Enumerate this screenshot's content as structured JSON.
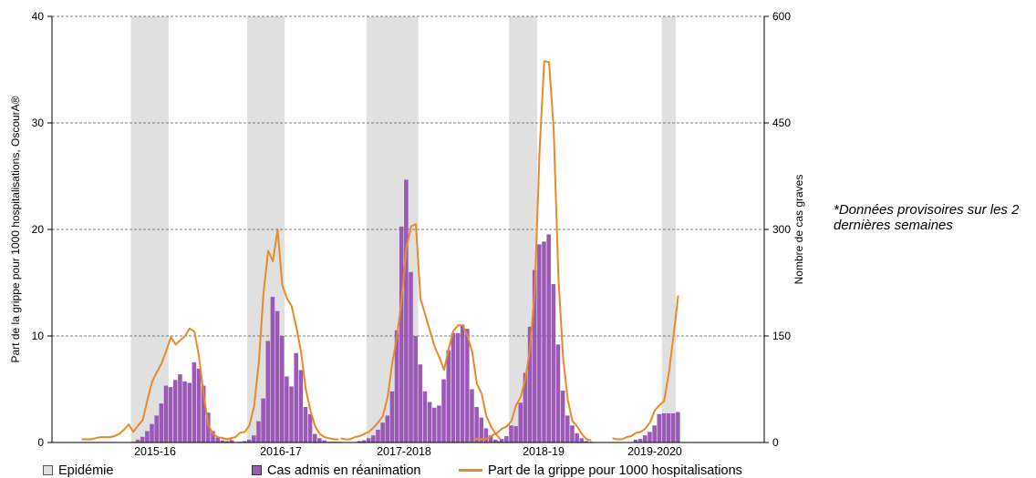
{
  "chart_data": {
    "type": "bar",
    "title": "",
    "ylabel_left": "Part de la grippe pour 1000 hospitalisations, OscourA®",
    "ylabel_right": "Nombre de cas graves",
    "ylim_left": [
      0,
      40
    ],
    "ylim_right": [
      0,
      600
    ],
    "yticks_left": [
      "0",
      "10",
      "20",
      "30",
      "40"
    ],
    "yticks_right": [
      "0",
      "150",
      "300",
      "450",
      "600"
    ],
    "grid": "horizontal dashed",
    "legend_position": "bottom",
    "note": "*Données provisoires sur les 2 dernières semaines",
    "colors": {
      "epidemic": "#e0e0e0",
      "bars": "#9b59b6",
      "line": "#e8892a"
    },
    "seasons": [
      {
        "label": "2015-16",
        "epidemic_weeks": [
          11,
          18
        ],
        "bars": [
          0,
          0,
          0,
          0,
          0,
          0,
          0,
          0,
          0,
          0,
          0,
          1,
          4,
          8,
          16,
          26,
          38,
          55,
          80,
          78,
          88,
          96,
          86,
          84,
          113,
          104,
          80,
          42,
          16,
          7,
          3,
          2,
          3
        ],
        "line": [
          0.3,
          0.3,
          0.3,
          0.4,
          0.5,
          0.5,
          0.5,
          0.6,
          0.8,
          1.2,
          1.7,
          1.0,
          1.6,
          2.1,
          4.0,
          5.7,
          6.6,
          7.4,
          8.6,
          9.9,
          9.2,
          9.6,
          10.0,
          10.7,
          10.4,
          8.0,
          4.4,
          1.6,
          0.8,
          0.5,
          0.4,
          0.3,
          0.3
        ]
      },
      {
        "label": "2016-17",
        "epidemic_weeks": [
          6,
          13
        ],
        "bars": [
          0,
          0,
          0,
          0,
          1,
          2,
          4,
          10,
          30,
          62,
          143,
          205,
          185,
          150,
          93,
          79,
          126,
          102,
          50,
          40,
          12,
          6,
          3,
          1,
          1,
          1
        ],
        "line": [
          0.5,
          0.3,
          0.4,
          0.5,
          0.9,
          1.0,
          1.6,
          3.4,
          7.5,
          14.0,
          18.0,
          17.0,
          20.0,
          14.8,
          13.5,
          12.8,
          10.8,
          8.5,
          5.0,
          3.0,
          1.5,
          0.8,
          0.5,
          0.4,
          0.3,
          0.3
        ]
      },
      {
        "label": "2017-2018",
        "epidemic_weeks": [
          6,
          16
        ],
        "bars": [
          0,
          0,
          0,
          0,
          2,
          3,
          6,
          10,
          18,
          28,
          38,
          72,
          158,
          304,
          370,
          240,
          150,
          110,
          72,
          57,
          49,
          52,
          89,
          130,
          154,
          154,
          166,
          160,
          75,
          50,
          35,
          20,
          10,
          4,
          1
        ],
        "line": [
          0.4,
          0.3,
          0.3,
          0.5,
          0.6,
          0.8,
          1.0,
          1.4,
          1.9,
          2.5,
          4.3,
          7.5,
          10.0,
          13.5,
          18.3,
          20.3,
          20.5,
          13.5,
          12.0,
          10.5,
          9.0,
          8.0,
          6.8,
          8.8,
          10.5,
          11.0,
          11.0,
          10.0,
          8.5,
          5.5,
          4.6,
          2.5,
          1.5,
          0.8,
          0.3
        ]
      },
      {
        "label": "2018-19",
        "epidemic_weeks": [
          8,
          13
        ],
        "bars": [
          0,
          0,
          0,
          0,
          0,
          2,
          5,
          9,
          24,
          23,
          56,
          98,
          163,
          243,
          279,
          283,
          293,
          223,
          138,
          73,
          38,
          24,
          13,
          6,
          2,
          1
        ],
        "line": [
          0.4,
          0.3,
          0.3,
          0.4,
          0.7,
          0.9,
          1.3,
          1.5,
          2.0,
          3.5,
          4.3,
          6.0,
          9.0,
          14.5,
          27.5,
          35.8,
          35.7,
          29.5,
          15.5,
          8.0,
          4.0,
          2.0,
          1.5,
          0.8,
          0.3,
          0.2
        ]
      },
      {
        "label": "2019-2020",
        "epidemic_weeks": [
          11,
          13
        ],
        "bars": [
          0,
          0,
          0,
          0,
          0,
          4,
          5,
          10,
          15,
          24,
          40,
          41,
          41,
          41,
          43
        ],
        "line": [
          0.4,
          0.3,
          0.3,
          0.5,
          0.6,
          0.9,
          1.0,
          1.3,
          1.9,
          3.0,
          3.5,
          3.9,
          6.5,
          10.0,
          13.8
        ]
      }
    ]
  },
  "legend": {
    "epidemic_label": "Epidémie",
    "bars_label": "Cas admis en réanimation",
    "line_label": "Part de la grippe pour 1000 hospitalisations"
  }
}
